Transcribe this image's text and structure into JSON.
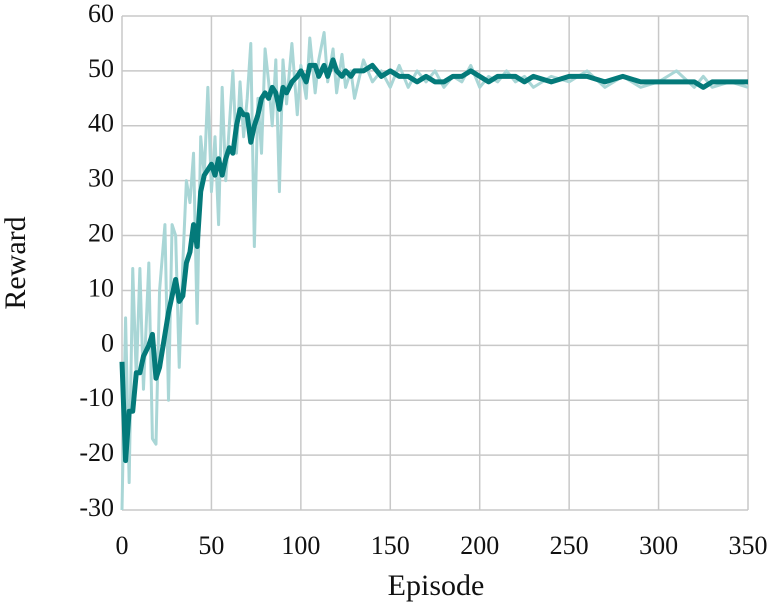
{
  "chart_data": {
    "type": "line",
    "x_label": "Episode",
    "y_label": "Reward",
    "x": [
      0,
      2,
      4,
      6,
      8,
      10,
      12,
      15,
      17,
      19,
      21,
      24,
      26,
      28,
      30,
      32,
      34,
      36,
      38,
      40,
      42,
      44,
      46,
      48,
      50,
      52,
      54,
      56,
      58,
      60,
      62,
      64,
      66,
      68,
      70,
      72,
      74,
      76,
      78,
      80,
      82,
      84,
      86,
      88,
      90,
      92,
      95,
      98,
      100,
      103,
      105,
      108,
      110,
      113,
      115,
      118,
      120,
      123,
      125,
      128,
      130,
      135,
      140,
      145,
      150,
      155,
      160,
      165,
      170,
      175,
      180,
      185,
      190,
      195,
      200,
      205,
      210,
      215,
      220,
      225,
      230,
      240,
      250,
      260,
      270,
      280,
      290,
      300,
      310,
      320,
      325,
      330,
      340,
      350
    ],
    "series": [
      {
        "color": "#a9d6d6",
        "values": [
          -30,
          5,
          -25,
          14,
          -6,
          14,
          -8,
          15,
          -17,
          -18,
          10,
          22,
          -10,
          22,
          20,
          -4,
          15,
          30,
          26,
          35,
          4,
          38,
          31,
          47,
          28,
          38,
          22,
          47,
          30,
          40,
          50,
          35,
          48,
          38,
          45,
          55,
          18,
          45,
          35,
          54,
          48,
          40,
          52,
          28,
          52,
          44,
          55,
          42,
          51,
          45,
          56,
          46,
          52,
          57,
          48,
          54,
          46,
          53,
          47,
          50,
          45,
          52,
          48,
          50,
          47,
          51,
          47,
          50,
          48,
          50,
          47,
          49,
          48,
          51,
          47,
          49,
          48,
          50,
          48,
          49,
          47,
          49,
          48,
          50,
          47,
          49,
          47,
          48,
          50,
          47,
          49,
          47,
          48,
          47
        ]
      },
      {
        "color": "#047a7a",
        "values": [
          -3,
          -21,
          -12,
          -12,
          -5,
          -5,
          -2,
          0,
          2,
          -6,
          -4,
          2,
          6,
          9,
          12,
          8,
          9,
          15,
          17,
          22,
          18,
          28,
          31,
          32,
          33,
          31,
          34,
          31,
          34,
          36,
          35,
          40,
          43,
          42,
          42,
          37,
          40,
          42,
          45,
          46,
          45,
          47,
          46,
          43,
          47,
          46,
          48,
          49,
          50,
          48,
          51,
          51,
          49,
          51,
          49,
          52,
          50,
          49,
          50,
          49,
          50,
          50,
          51,
          49,
          50,
          49,
          49,
          48,
          49,
          48,
          48,
          49,
          49,
          50,
          49,
          48,
          49,
          49,
          49,
          48,
          49,
          48,
          49,
          49,
          48,
          49,
          48,
          48,
          48,
          48,
          47,
          48,
          48,
          48
        ]
      }
    ],
    "xlim": [
      0,
      350
    ],
    "xticks": [
      0,
      50,
      100,
      150,
      200,
      250,
      300,
      350
    ],
    "ylim": [
      -30,
      60
    ],
    "yticks": [
      -30,
      -20,
      -10,
      0,
      10,
      20,
      30,
      40,
      50,
      60
    ],
    "grid": true
  }
}
